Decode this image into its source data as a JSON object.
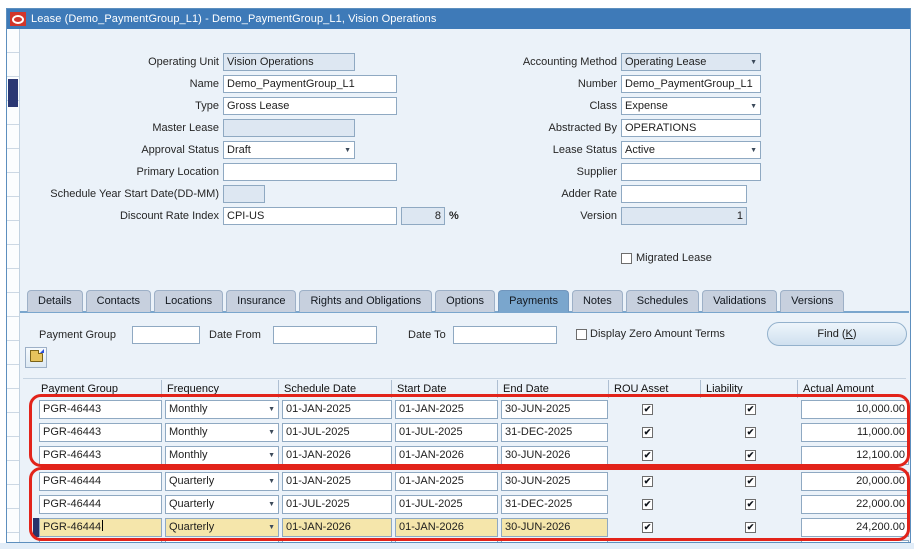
{
  "window": {
    "title": "Lease (Demo_PaymentGroup_L1) - Demo_PaymentGroup_L1, Vision Operations"
  },
  "form": {
    "left": [
      {
        "label": "Operating Unit",
        "value": "Vision Operations"
      },
      {
        "label": "Name",
        "value": "Demo_PaymentGroup_L1"
      },
      {
        "label": "Type",
        "value": "Gross Lease"
      },
      {
        "label": "Master Lease",
        "value": ""
      },
      {
        "label": "Approval Status",
        "value": "Draft"
      },
      {
        "label": "Primary Location",
        "value": ""
      },
      {
        "label": "Schedule Year Start Date(DD-MM)",
        "value": ""
      },
      {
        "label": "Discount Rate Index",
        "value": "CPI-US",
        "rate_value": "8",
        "rate_suffix": "%"
      }
    ],
    "right": [
      {
        "label": "Accounting Method",
        "value": "Operating Lease"
      },
      {
        "label": "Number",
        "value": "Demo_PaymentGroup_L1"
      },
      {
        "label": "Class",
        "value": "Expense"
      },
      {
        "label": "Abstracted By",
        "value": "OPERATIONS"
      },
      {
        "label": "Lease Status",
        "value": "Active"
      },
      {
        "label": "Supplier",
        "value": ""
      },
      {
        "label": "Adder Rate",
        "value": ""
      },
      {
        "label": "Version",
        "value": "1"
      }
    ],
    "migrated_lease": {
      "label": "Migrated Lease",
      "checked": false
    }
  },
  "tabs": [
    "Details",
    "Contacts",
    "Locations",
    "Insurance",
    "Rights and Obligations",
    "Options",
    "Payments",
    "Notes",
    "Schedules",
    "Validations",
    "Versions"
  ],
  "active_tab": "Payments",
  "search": {
    "payment_group_label": "Payment Group",
    "payment_group_value": "",
    "date_from_label": "Date From",
    "date_from_value": "",
    "date_to_label": "Date To",
    "date_to_value": "",
    "display_zero_label": "Display Zero Amount Terms",
    "display_zero_checked": false,
    "find_button": {
      "prefix": "Find (",
      "key": "K",
      "suffix": ")"
    }
  },
  "table": {
    "columns": [
      "Payment Group",
      "Frequency",
      "Schedule Date",
      "Start Date",
      "End Date",
      "ROU Asset",
      "Liability",
      "Actual Amount"
    ],
    "rows": [
      {
        "payment_group": "PGR-46443",
        "frequency": "Monthly",
        "schedule_date": "01-JAN-2025",
        "start_date": "01-JAN-2025",
        "end_date": "30-JUN-2025",
        "rou_asset": true,
        "liability": true,
        "actual_amount": "10,000.00",
        "active": false
      },
      {
        "payment_group": "PGR-46443",
        "frequency": "Monthly",
        "schedule_date": "01-JUL-2025",
        "start_date": "01-JUL-2025",
        "end_date": "31-DEC-2025",
        "rou_asset": true,
        "liability": true,
        "actual_amount": "11,000.00",
        "active": false
      },
      {
        "payment_group": "PGR-46443",
        "frequency": "Monthly",
        "schedule_date": "01-JAN-2026",
        "start_date": "01-JAN-2026",
        "end_date": "30-JUN-2026",
        "rou_asset": true,
        "liability": true,
        "actual_amount": "12,100.00",
        "active": false
      },
      {
        "payment_group": "PGR-46444",
        "frequency": "Quarterly",
        "schedule_date": "01-JAN-2025",
        "start_date": "01-JAN-2025",
        "end_date": "30-JUN-2025",
        "rou_asset": true,
        "liability": true,
        "actual_amount": "20,000.00",
        "active": false
      },
      {
        "payment_group": "PGR-46444",
        "frequency": "Quarterly",
        "schedule_date": "01-JUL-2025",
        "start_date": "01-JUL-2025",
        "end_date": "31-DEC-2025",
        "rou_asset": true,
        "liability": true,
        "actual_amount": "22,000.00",
        "active": false
      },
      {
        "payment_group": "PGR-46444",
        "frequency": "Quarterly",
        "schedule_date": "01-JAN-2026",
        "start_date": "01-JAN-2026",
        "end_date": "30-JUN-2026",
        "rou_asset": true,
        "liability": true,
        "actual_amount": "24,200.00",
        "active": true
      }
    ]
  },
  "annotations": {
    "highlight_color": "#e2231a",
    "highlighted_groups": [
      "PGR-46443",
      "PGR-46444"
    ]
  },
  "colors": {
    "titlebar": "#3e7ab8",
    "active_tab": "#7aa6cd",
    "active_row": "#f5e6ab",
    "annotation_red": "#e2231a",
    "record_indicator": "#27336b"
  }
}
